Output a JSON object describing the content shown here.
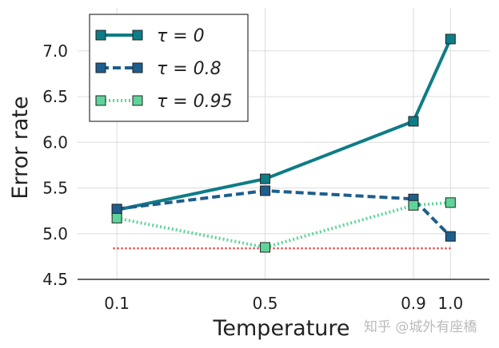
{
  "chart_data": {
    "type": "line",
    "title": "",
    "xlabel": "Temperature",
    "ylabel": "Error rate",
    "xlim": [
      -0.006,
      1.105
    ],
    "ylim": [
      4.5,
      7.47
    ],
    "x_ticks": [
      0.1,
      0.5,
      0.9,
      1.0
    ],
    "x_tick_labels": [
      "0.1",
      "0.5",
      "0.9",
      "1.0"
    ],
    "y_ticks": [
      4.5,
      5.0,
      5.5,
      6.0,
      6.5,
      7.0
    ],
    "y_tick_labels": [
      "4.5",
      "5.0",
      "5.5",
      "6.0",
      "6.5",
      "7.0"
    ],
    "grid": true,
    "legend_position": "top-left",
    "x": [
      0.1,
      0.5,
      0.9,
      1.0
    ],
    "series": [
      {
        "name": "τ = 0",
        "values": [
          5.26,
          5.6,
          6.23,
          7.13
        ],
        "color": "#0e7c86",
        "line": "solid"
      },
      {
        "name": "τ = 0.8",
        "values": [
          5.27,
          5.47,
          5.38,
          4.97
        ],
        "color": "#1d5e8c",
        "line": "dashed"
      },
      {
        "name": "τ = 0.95",
        "values": [
          5.17,
          4.85,
          5.31,
          5.34
        ],
        "color": "#5fd49a",
        "line": "dotted"
      }
    ],
    "reference_line": {
      "value": 4.84,
      "x_range": [
        0.09,
        1.0
      ],
      "color": "#e8302a",
      "line": "dotted"
    }
  },
  "watermark": "知乎 @城外有座橋"
}
